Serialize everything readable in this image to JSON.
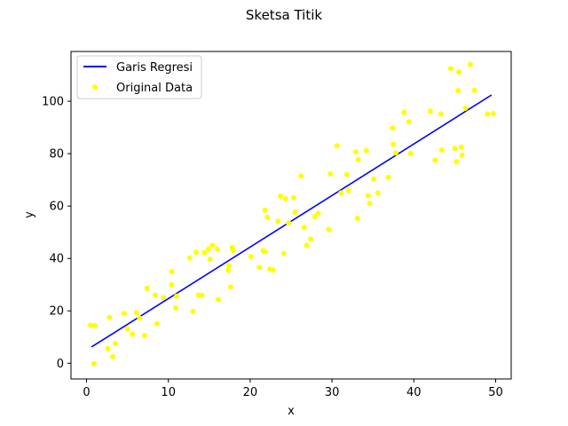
{
  "chart_data": {
    "type": "scatter",
    "title": "Sketsa Titik",
    "xlabel": "x",
    "ylabel": "y",
    "xlim": [
      -1.9,
      51.9
    ],
    "ylim": [
      -6,
      119
    ],
    "xticks": [
      0,
      10,
      20,
      30,
      40,
      50
    ],
    "yticks": [
      0,
      20,
      40,
      60,
      80,
      100
    ],
    "grid": false,
    "legend": "upper-left",
    "series": [
      {
        "name": "Garis Regresi",
        "kind": "line",
        "color": "#0000ff",
        "x": [
          0.6,
          49.5
        ],
        "y": [
          6.2,
          102.4
        ]
      },
      {
        "name": "Original Data",
        "kind": "scatter",
        "color": "#ffff00",
        "x": [
          0.5,
          1.0,
          0.9,
          2.6,
          2.8,
          3.2,
          3.5,
          4.6,
          5.0,
          5.6,
          6.1,
          6.5,
          7.1,
          7.4,
          8.4,
          8.6,
          9.4,
          10.4,
          10.4,
          10.9,
          11.0,
          12.6,
          13.0,
          13.4,
          13.7,
          14.1,
          14.4,
          14.9,
          15.1,
          15.4,
          16.0,
          16.1,
          17.3,
          17.4,
          17.6,
          17.8,
          17.9,
          20.1,
          21.1,
          21.6,
          21.8,
          21.8,
          22.1,
          22.4,
          22.8,
          23.4,
          23.7,
          24.1,
          24.3,
          24.7,
          25.3,
          25.5,
          26.2,
          26.6,
          26.9,
          27.4,
          27.9,
          28.3,
          29.6,
          29.8,
          30.6,
          31.1,
          31.8,
          32.0,
          32.9,
          33.1,
          33.2,
          34.2,
          34.4,
          34.6,
          35.1,
          35.6,
          36.9,
          37.4,
          37.5,
          37.8,
          38.8,
          39.4,
          39.6,
          42.0,
          42.6,
          43.3,
          43.4,
          44.5,
          45.0,
          45.2,
          45.4,
          45.5,
          45.8,
          45.9,
          46.3,
          46.9,
          47.4,
          49.0,
          49.7
        ],
        "y": [
          14.5,
          14.4,
          -0.2,
          5.6,
          17.5,
          2.5,
          7.6,
          19.0,
          13.2,
          11.1,
          19.3,
          17.2,
          10.6,
          28.6,
          26.0,
          15.1,
          25.1,
          29.9,
          35.0,
          21.2,
          25.6,
          40.2,
          19.8,
          42.4,
          26.0,
          25.9,
          42.2,
          43.6,
          39.7,
          45.0,
          43.6,
          24.3,
          35.5,
          37.3,
          29.1,
          44.2,
          43.0,
          40.7,
          36.6,
          43.0,
          42.6,
          58.4,
          55.7,
          35.9,
          35.6,
          54.2,
          63.8,
          41.9,
          62.8,
          53.5,
          63.2,
          57.6,
          71.5,
          51.9,
          45.0,
          47.4,
          56.0,
          57.2,
          51.1,
          72.3,
          83.0,
          65.0,
          72.1,
          66.0,
          80.7,
          55.3,
          77.7,
          81.2,
          64.0,
          61.0,
          70.3,
          65.0,
          71.0,
          89.8,
          83.6,
          80.3,
          95.7,
          92.2,
          80.1,
          96.2,
          77.5,
          95.1,
          81.4,
          112.5,
          82.0,
          76.9,
          104.1,
          111.2,
          82.5,
          79.4,
          97.3,
          114.0,
          104.2,
          95.1,
          95.3
        ]
      }
    ]
  }
}
